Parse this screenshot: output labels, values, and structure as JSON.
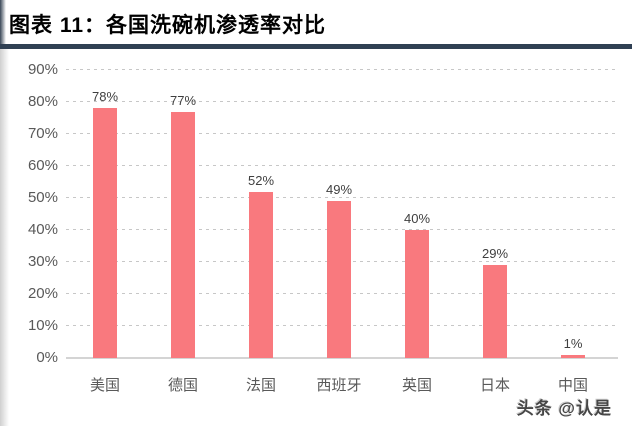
{
  "page": {
    "title": "图表 11：各国洗碗机渗透率对比",
    "watermark": "头条 @认是"
  },
  "colors": {
    "bar": "#F9797E",
    "divider": "#2F4053",
    "gridline": "#C7C7C7",
    "axis_line": "#D4D4D4",
    "tick_label": "#595959",
    "category_label": "#595959",
    "data_label": "#3F3F3F",
    "title_text": "#000000",
    "watermark_text": "#474747"
  },
  "chart_data": {
    "type": "bar",
    "title": "各国洗碗机渗透率对比",
    "categories": [
      "美国",
      "德国",
      "法国",
      "西班牙",
      "英国",
      "日本",
      "中国"
    ],
    "values": [
      78,
      77,
      52,
      49,
      40,
      29,
      1
    ],
    "data_labels": [
      "78%",
      "77%",
      "52%",
      "49%",
      "40%",
      "29%",
      "1%"
    ],
    "xlabel": "",
    "ylabel": "",
    "ylim": [
      0,
      90
    ],
    "y_ticks": [
      {
        "label": "90%",
        "value": 90
      },
      {
        "label": "80%",
        "value": 80
      },
      {
        "label": "70%",
        "value": 70
      },
      {
        "label": "60%",
        "value": 60
      },
      {
        "label": "50%",
        "value": 50
      },
      {
        "label": "40%",
        "value": 40
      },
      {
        "label": "30%",
        "value": 30
      },
      {
        "label": "20%",
        "value": 20
      },
      {
        "label": "10%",
        "value": 10
      },
      {
        "label": "0%",
        "value": 0
      }
    ],
    "grid": "horizontal-dashed",
    "legend": "none"
  }
}
